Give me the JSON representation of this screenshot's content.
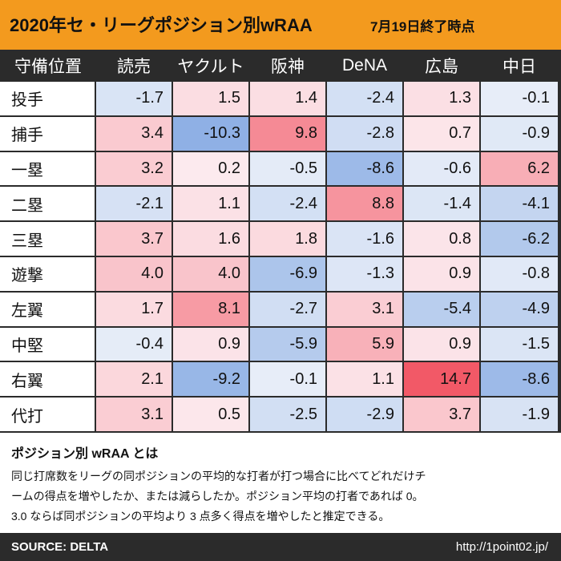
{
  "header": {
    "title": "2020年セ・リーグポジション別wRAA",
    "date": "7月19日終了時点"
  },
  "table": {
    "corner_label": "守備位置"
  },
  "chart_data": {
    "type": "table",
    "title": "2020年セ・リーグポジション別wRAA 7月19日終了時点",
    "columns": [
      "読売",
      "ヤクルト",
      "阪神",
      "DeNA",
      "広島",
      "中日"
    ],
    "rows": [
      "投手",
      "捕手",
      "一塁",
      "二塁",
      "三塁",
      "遊撃",
      "左翼",
      "中堅",
      "右翼",
      "代打"
    ],
    "values": [
      [
        "-1.7",
        "1.5",
        "1.4",
        "-2.4",
        "1.3",
        "-0.1"
      ],
      [
        "3.4",
        "-10.3",
        "9.8",
        "-2.8",
        "0.7",
        "-0.9"
      ],
      [
        "3.2",
        "0.2",
        "-0.5",
        "-8.6",
        "-0.6",
        "6.2"
      ],
      [
        "-2.1",
        "1.1",
        "-2.4",
        "8.8",
        "-1.4",
        "-4.1"
      ],
      [
        "3.7",
        "1.6",
        "1.8",
        "-1.6",
        "0.8",
        "-6.2"
      ],
      [
        "4.0",
        "4.0",
        "-6.9",
        "-1.3",
        "0.9",
        "-0.8"
      ],
      [
        "1.7",
        "8.1",
        "-2.7",
        "3.1",
        "-5.4",
        "-4.9"
      ],
      [
        "-0.4",
        "0.9",
        "-5.9",
        "5.9",
        "0.9",
        "-1.5"
      ],
      [
        "2.1",
        "-9.2",
        "-0.1",
        "1.1",
        "14.7",
        "-8.6"
      ],
      [
        "3.1",
        "0.5",
        "-2.5",
        "-2.9",
        "3.7",
        "-1.9"
      ]
    ]
  },
  "notes": {
    "title": "ポジション別 wRAA とは",
    "line1": "同じ打席数をリーグの同ポジションの平均的な打者が打つ場合に比べてどれだけチ",
    "line2": "ームの得点を増やしたか、または減らしたか。ポジション平均の打者であれば 0。",
    "line3": "3.0 ならば同ポジションの平均より 3 点多く得点を増やしたと推定できる。"
  },
  "footer": {
    "source": "SOURCE: DELTA",
    "url": "http://1point02.jp/"
  }
}
